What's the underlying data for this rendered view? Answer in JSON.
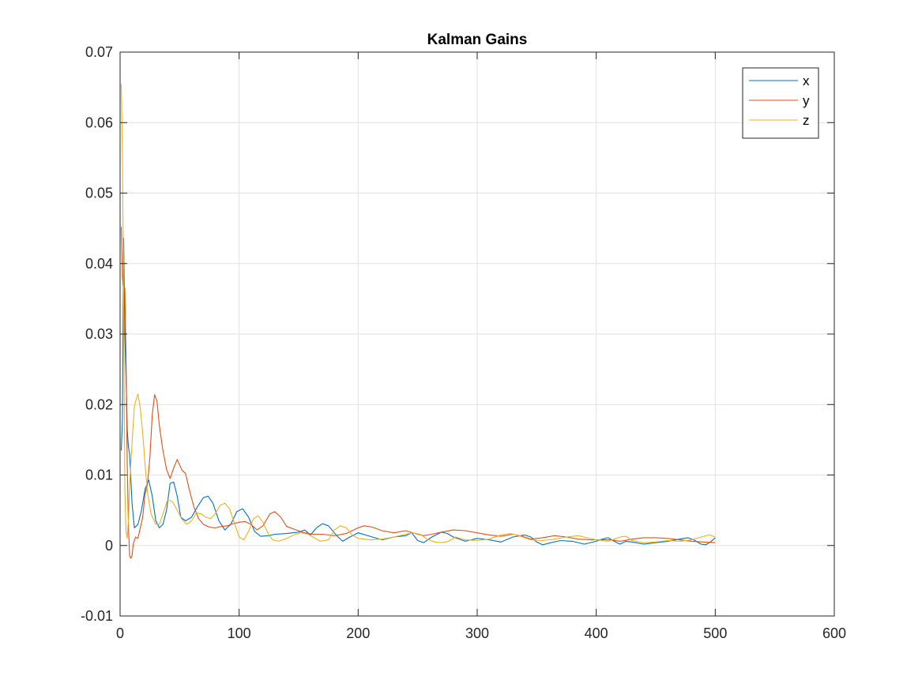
{
  "chart_data": {
    "type": "line",
    "title": "Kalman Gains",
    "xlabel": "",
    "ylabel": "",
    "xlim": [
      0,
      600
    ],
    "ylim": [
      -0.01,
      0.07
    ],
    "xticks": [
      0,
      100,
      200,
      300,
      400,
      500,
      600
    ],
    "xtick_labels": [
      "0",
      "100",
      "200",
      "300",
      "400",
      "500",
      "600"
    ],
    "yticks": [
      -0.01,
      0,
      0.01,
      0.02,
      0.03,
      0.04,
      0.05,
      0.06,
      0.07
    ],
    "ytick_labels": [
      "-0.01",
      "0",
      "0.01",
      "0.02",
      "0.03",
      "0.04",
      "0.05",
      "0.06",
      "0.07"
    ],
    "grid": true,
    "legend_position": "top-right",
    "series": [
      {
        "name": "x",
        "color": "#0072BD",
        "points": [
          [
            1,
            0.0135
          ],
          [
            2,
            0.018
          ],
          [
            3,
            0.0436
          ],
          [
            4,
            0.03
          ],
          [
            5,
            0.024
          ],
          [
            6,
            0.0165
          ],
          [
            7,
            0.014
          ],
          [
            8,
            0.013
          ],
          [
            10,
            0.006
          ],
          [
            12,
            0.0025
          ],
          [
            15,
            0.003
          ],
          [
            18,
            0.005
          ],
          [
            21,
            0.008
          ],
          [
            24,
            0.0093
          ],
          [
            27,
            0.007
          ],
          [
            30,
            0.0035
          ],
          [
            33,
            0.0025
          ],
          [
            36,
            0.003
          ],
          [
            39,
            0.005
          ],
          [
            42,
            0.0088
          ],
          [
            45,
            0.009
          ],
          [
            48,
            0.007
          ],
          [
            51,
            0.004
          ],
          [
            55,
            0.0035
          ],
          [
            60,
            0.004
          ],
          [
            65,
            0.0055
          ],
          [
            70,
            0.0068
          ],
          [
            74,
            0.007
          ],
          [
            78,
            0.006
          ],
          [
            83,
            0.0035
          ],
          [
            88,
            0.0022
          ],
          [
            93,
            0.003
          ],
          [
            98,
            0.0048
          ],
          [
            103,
            0.0052
          ],
          [
            108,
            0.004
          ],
          [
            113,
            0.002
          ],
          [
            118,
            0.0013
          ],
          [
            125,
            0.0014
          ],
          [
            130,
            0.0016
          ],
          [
            140,
            0.0017
          ],
          [
            150,
            0.0019
          ],
          [
            155,
            0.0022
          ],
          [
            160,
            0.0015
          ],
          [
            165,
            0.0025
          ],
          [
            170,
            0.0031
          ],
          [
            175,
            0.0028
          ],
          [
            182,
            0.0014
          ],
          [
            187,
            0.0006
          ],
          [
            193,
            0.0012
          ],
          [
            200,
            0.0018
          ],
          [
            210,
            0.0013
          ],
          [
            220,
            0.0008
          ],
          [
            230,
            0.0012
          ],
          [
            240,
            0.0014
          ],
          [
            245,
            0.0018
          ],
          [
            250,
            0.0007
          ],
          [
            255,
            0.0004
          ],
          [
            262,
            0.0012
          ],
          [
            270,
            0.0019
          ],
          [
            275,
            0.0017
          ],
          [
            280,
            0.0012
          ],
          [
            290,
            0.0006
          ],
          [
            300,
            0.001
          ],
          [
            310,
            0.0008
          ],
          [
            320,
            0.0005
          ],
          [
            330,
            0.0012
          ],
          [
            340,
            0.0015
          ],
          [
            345,
            0.0012
          ],
          [
            350,
            0.0005
          ],
          [
            355,
            0.0001
          ],
          [
            362,
            0.0004
          ],
          [
            370,
            0.0007
          ],
          [
            380,
            0.0006
          ],
          [
            390,
            0.0002
          ],
          [
            400,
            0.0006
          ],
          [
            405,
            0.0009
          ],
          [
            410,
            0.0011
          ],
          [
            415,
            0.0006
          ],
          [
            420,
            0.0002
          ],
          [
            425,
            0.0006
          ],
          [
            430,
            0.0005
          ],
          [
            440,
            0.0002
          ],
          [
            450,
            0.0004
          ],
          [
            460,
            0.0006
          ],
          [
            470,
            0.0009
          ],
          [
            477,
            0.0011
          ],
          [
            482,
            0.0008
          ],
          [
            488,
            0.0002
          ],
          [
            492,
            0.0001
          ],
          [
            496,
            0.0005
          ],
          [
            500,
            0.0011
          ]
        ]
      },
      {
        "name": "y",
        "color": "#D95319",
        "points": [
          [
            1,
            0.0452
          ],
          [
            2,
            0.038
          ],
          [
            3,
            0.036
          ],
          [
            4,
            0.0365
          ],
          [
            5,
            0.027
          ],
          [
            6,
            0.012
          ],
          [
            7,
            0.003
          ],
          [
            8,
            -0.0015
          ],
          [
            9,
            -0.0018
          ],
          [
            10,
            -0.0015
          ],
          [
            11,
            0.0002
          ],
          [
            13,
            0.0012
          ],
          [
            15,
            0.001
          ],
          [
            17,
            0.0025
          ],
          [
            19,
            0.004
          ],
          [
            21,
            0.0073
          ],
          [
            23,
            0.0087
          ],
          [
            25,
            0.0125
          ],
          [
            27,
            0.0185
          ],
          [
            29,
            0.0214
          ],
          [
            31,
            0.0205
          ],
          [
            33,
            0.017
          ],
          [
            36,
            0.0135
          ],
          [
            39,
            0.0108
          ],
          [
            42,
            0.0095
          ],
          [
            45,
            0.011
          ],
          [
            48,
            0.0122
          ],
          [
            52,
            0.0107
          ],
          [
            55,
            0.0102
          ],
          [
            58,
            0.008
          ],
          [
            62,
            0.0055
          ],
          [
            66,
            0.0038
          ],
          [
            70,
            0.003
          ],
          [
            75,
            0.0026
          ],
          [
            80,
            0.0025
          ],
          [
            85,
            0.0027
          ],
          [
            90,
            0.0028
          ],
          [
            95,
            0.0031
          ],
          [
            100,
            0.0033
          ],
          [
            105,
            0.0034
          ],
          [
            110,
            0.003
          ],
          [
            115,
            0.0022
          ],
          [
            120,
            0.0028
          ],
          [
            126,
            0.0045
          ],
          [
            130,
            0.0048
          ],
          [
            135,
            0.004
          ],
          [
            140,
            0.0027
          ],
          [
            148,
            0.0022
          ],
          [
            155,
            0.0018
          ],
          [
            162,
            0.0016
          ],
          [
            170,
            0.0016
          ],
          [
            180,
            0.0014
          ],
          [
            190,
            0.0017
          ],
          [
            200,
            0.0025
          ],
          [
            205,
            0.0028
          ],
          [
            212,
            0.0026
          ],
          [
            220,
            0.0021
          ],
          [
            230,
            0.0018
          ],
          [
            240,
            0.0021
          ],
          [
            250,
            0.0016
          ],
          [
            255,
            0.0014
          ],
          [
            262,
            0.0016
          ],
          [
            270,
            0.0019
          ],
          [
            280,
            0.0022
          ],
          [
            290,
            0.0021
          ],
          [
            300,
            0.0018
          ],
          [
            310,
            0.0015
          ],
          [
            320,
            0.0013
          ],
          [
            330,
            0.0016
          ],
          [
            338,
            0.0013
          ],
          [
            345,
            0.0009
          ],
          [
            355,
            0.0011
          ],
          [
            365,
            0.0014
          ],
          [
            375,
            0.0012
          ],
          [
            385,
            0.0009
          ],
          [
            395,
            0.0008
          ],
          [
            405,
            0.0008
          ],
          [
            412,
            0.0008
          ],
          [
            420,
            0.0006
          ],
          [
            430,
            0.0009
          ],
          [
            440,
            0.0011
          ],
          [
            450,
            0.0011
          ],
          [
            460,
            0.001
          ],
          [
            470,
            0.0008
          ],
          [
            480,
            0.0006
          ],
          [
            490,
            0.0005
          ],
          [
            500,
            0.0004
          ]
        ]
      },
      {
        "name": "z",
        "color": "#EDB120",
        "points": [
          [
            1,
            0.0655
          ],
          [
            2,
            0.055
          ],
          [
            3,
            0.035
          ],
          [
            4,
            0.008
          ],
          [
            5,
            0.002
          ],
          [
            6,
            0.001
          ],
          [
            7,
            0.0035
          ],
          [
            8,
            0.0085
          ],
          [
            10,
            0.0145
          ],
          [
            12,
            0.0198
          ],
          [
            14,
            0.021
          ],
          [
            15,
            0.0215
          ],
          [
            17,
            0.0195
          ],
          [
            19,
            0.016
          ],
          [
            21,
            0.0115
          ],
          [
            23,
            0.0075
          ],
          [
            26,
            0.0045
          ],
          [
            30,
            0.003
          ],
          [
            33,
            0.003
          ],
          [
            36,
            0.0045
          ],
          [
            40,
            0.0065
          ],
          [
            44,
            0.0062
          ],
          [
            48,
            0.005
          ],
          [
            52,
            0.0037
          ],
          [
            56,
            0.003
          ],
          [
            60,
            0.0035
          ],
          [
            64,
            0.0046
          ],
          [
            68,
            0.0045
          ],
          [
            72,
            0.004
          ],
          [
            76,
            0.0038
          ],
          [
            80,
            0.0045
          ],
          [
            84,
            0.0057
          ],
          [
            88,
            0.006
          ],
          [
            92,
            0.0052
          ],
          [
            96,
            0.0032
          ],
          [
            100,
            0.0012
          ],
          [
            104,
            0.0008
          ],
          [
            108,
            0.002
          ],
          [
            112,
            0.0038
          ],
          [
            116,
            0.0042
          ],
          [
            120,
            0.0033
          ],
          [
            124,
            0.0018
          ],
          [
            128,
            0.0008
          ],
          [
            133,
            0.0006
          ],
          [
            140,
            0.001
          ],
          [
            146,
            0.0015
          ],
          [
            152,
            0.0018
          ],
          [
            158,
            0.0016
          ],
          [
            163,
            0.0011
          ],
          [
            168,
            0.0006
          ],
          [
            175,
            0.0008
          ],
          [
            180,
            0.0022
          ],
          [
            185,
            0.0028
          ],
          [
            190,
            0.0025
          ],
          [
            195,
            0.0015
          ],
          [
            200,
            0.001
          ],
          [
            210,
            0.0008
          ],
          [
            220,
            0.0009
          ],
          [
            230,
            0.0012
          ],
          [
            240,
            0.0016
          ],
          [
            246,
            0.0018
          ],
          [
            252,
            0.0016
          ],
          [
            258,
            0.0009
          ],
          [
            264,
            0.0005
          ],
          [
            270,
            0.0004
          ],
          [
            276,
            0.0006
          ],
          [
            282,
            0.0012
          ],
          [
            290,
            0.0008
          ],
          [
            300,
            0.0007
          ],
          [
            310,
            0.0009
          ],
          [
            320,
            0.0015
          ],
          [
            328,
            0.0017
          ],
          [
            335,
            0.0014
          ],
          [
            345,
            0.0008
          ],
          [
            355,
            0.0007
          ],
          [
            365,
            0.0009
          ],
          [
            375,
            0.0012
          ],
          [
            385,
            0.0014
          ],
          [
            392,
            0.0011
          ],
          [
            400,
            0.0008
          ],
          [
            410,
            0.0006
          ],
          [
            420,
            0.0012
          ],
          [
            425,
            0.0013
          ],
          [
            430,
            0.0007
          ],
          [
            440,
            0.0004
          ],
          [
            450,
            0.0005
          ],
          [
            460,
            0.0007
          ],
          [
            470,
            0.0006
          ],
          [
            480,
            0.0008
          ],
          [
            488,
            0.0012
          ],
          [
            495,
            0.0015
          ],
          [
            500,
            0.0012
          ]
        ]
      }
    ]
  }
}
